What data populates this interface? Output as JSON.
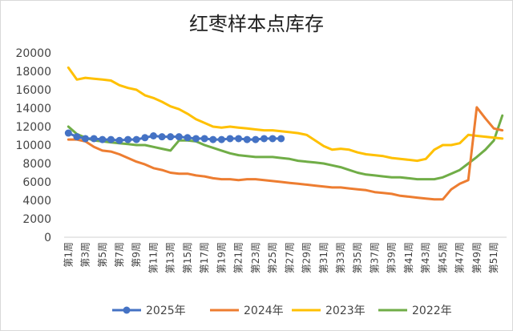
{
  "chart_data": {
    "type": "line",
    "title": "红枣样本点库存",
    "xlabel": "",
    "ylabel": "",
    "ylim": [
      0,
      20000
    ],
    "yticks": [
      0,
      2000,
      4000,
      6000,
      8000,
      10000,
      12000,
      14000,
      16000,
      18000,
      20000
    ],
    "x_ticks": [
      "第1周",
      "第3周",
      "第5周",
      "第7周",
      "第9周",
      "第11周",
      "第13周",
      "第15周",
      "第17周",
      "第19周",
      "第21周",
      "第23周",
      "第25周",
      "第27周",
      "第29周",
      "第31周",
      "第33周",
      "第35周",
      "第37周",
      "第39周",
      "第41周",
      "第43周",
      "第45周",
      "第47周",
      "第49周",
      "第51周"
    ],
    "legend_position": "bottom",
    "grid": false,
    "series": [
      {
        "name": "2025年",
        "color": "#4472C4",
        "marker": "circle",
        "values": [
          11300,
          10900,
          10700,
          10700,
          10600,
          10600,
          10500,
          10600,
          10600,
          10800,
          11000,
          10900,
          10900,
          10900,
          10800,
          10700,
          10700,
          10600,
          10600,
          10700,
          10700,
          10600,
          10600,
          10700,
          10700,
          10700
        ]
      },
      {
        "name": "2024年",
        "color": "#ED7D31",
        "values": [
          10600,
          10600,
          10400,
          9800,
          9400,
          9300,
          9000,
          8600,
          8200,
          7900,
          7500,
          7300,
          7000,
          6900,
          6900,
          6700,
          6600,
          6400,
          6300,
          6300,
          6200,
          6300,
          6300,
          6200,
          6100,
          6000,
          5900,
          5800,
          5700,
          5600,
          5500,
          5400,
          5400,
          5300,
          5200,
          5100,
          4900,
          4800,
          4700,
          4500,
          4400,
          4300,
          4200,
          4100,
          4100,
          5200,
          5800,
          6200,
          14100,
          12900,
          11800,
          11600
        ]
      },
      {
        "name": "2023年",
        "color": "#FFC000",
        "values": [
          18400,
          17100,
          17300,
          17200,
          17100,
          17000,
          16500,
          16200,
          16000,
          15400,
          15100,
          14700,
          14200,
          13900,
          13400,
          12800,
          12400,
          12000,
          11900,
          12000,
          11900,
          11800,
          11700,
          11600,
          11600,
          11500,
          11400,
          11300,
          11100,
          10500,
          9900,
          9500,
          9600,
          9500,
          9200,
          9000,
          8900,
          8800,
          8600,
          8500,
          8400,
          8300,
          8500,
          9500,
          10000,
          10000,
          10200,
          11100,
          11000,
          10900,
          10800,
          10700
        ]
      },
      {
        "name": "2022年",
        "color": "#70AD47",
        "values": [
          12000,
          11200,
          10800,
          10500,
          10400,
          10300,
          10200,
          10100,
          10000,
          10000,
          9800,
          9600,
          9400,
          10500,
          10500,
          10400,
          10000,
          9700,
          9400,
          9100,
          8900,
          8800,
          8700,
          8700,
          8700,
          8600,
          8500,
          8300,
          8200,
          8100,
          8000,
          7800,
          7600,
          7300,
          7000,
          6800,
          6700,
          6600,
          6500,
          6500,
          6400,
          6300,
          6300,
          6300,
          6500,
          6900,
          7300,
          8000,
          8700,
          9500,
          10500,
          13200
        ]
      }
    ]
  },
  "legend": {
    "items": [
      {
        "label": "2025年",
        "color": "#4472C4",
        "marker": "circle"
      },
      {
        "label": "2024年",
        "color": "#ED7D31"
      },
      {
        "label": "2023年",
        "color": "#FFC000"
      },
      {
        "label": "2022年",
        "color": "#70AD47"
      }
    ]
  }
}
